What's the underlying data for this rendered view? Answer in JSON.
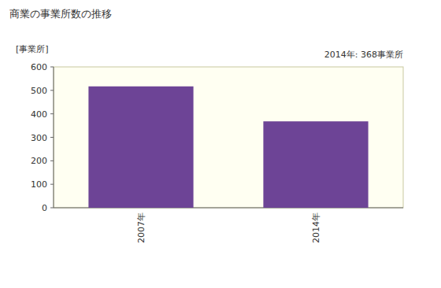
{
  "chart_data": {
    "type": "bar",
    "title": "商業の事業所数の推移",
    "y_label": "[事業所]",
    "annotation": "2014年: 368事業所",
    "categories": [
      "2007年",
      "2014年"
    ],
    "values": [
      517,
      368
    ],
    "color": "#6d4496",
    "ylim": [
      0,
      600
    ],
    "yticks": [
      0,
      100,
      200,
      300,
      400,
      500,
      600
    ],
    "grid": false
  }
}
